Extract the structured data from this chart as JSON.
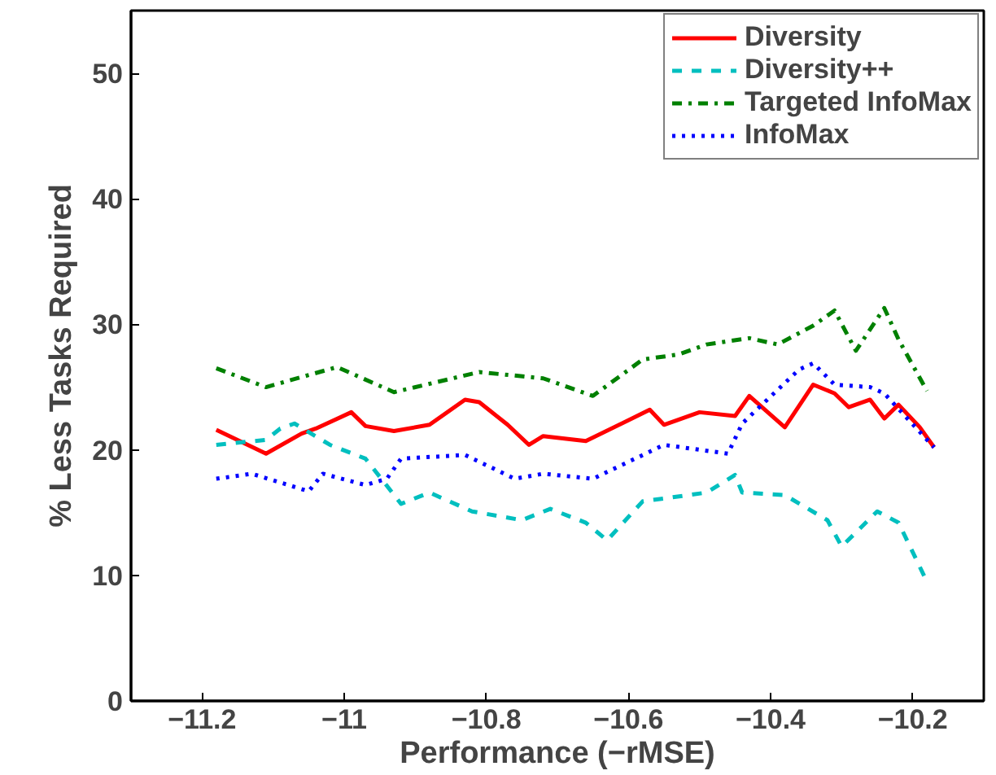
{
  "chart_data": {
    "type": "line",
    "xlabel": "Performance (−rMSE)",
    "ylabel": "% Less Tasks Required",
    "xlim": [
      -11.3,
      -10.1
    ],
    "ylim": [
      0,
      55
    ],
    "xticks": [
      {
        "value": -11.2,
        "label": "−11.2"
      },
      {
        "value": -11,
        "label": "−11"
      },
      {
        "value": -10.8,
        "label": "−10.8"
      },
      {
        "value": -10.6,
        "label": "−10.6"
      },
      {
        "value": -10.4,
        "label": "−10.4"
      },
      {
        "value": -10.2,
        "label": "−10.2"
      }
    ],
    "yticks": [
      0,
      10,
      20,
      30,
      40,
      50
    ],
    "grid": false,
    "legend": "top right",
    "marker": "none",
    "series": [
      {
        "name": "Diversity",
        "color": "#ff0000",
        "line_style": "solid",
        "x": [
          -11.18,
          -11.11,
          -11.06,
          -11.04,
          -10.99,
          -10.97,
          -10.93,
          -10.88,
          -10.83,
          -10.81,
          -10.77,
          -10.74,
          -10.72,
          -10.66,
          -10.57,
          -10.55,
          -10.5,
          -10.45,
          -10.43,
          -10.38,
          -10.34,
          -10.31,
          -10.29,
          -10.26,
          -10.24,
          -10.22,
          -10.19,
          -10.17
        ],
        "values": [
          21.6,
          19.7,
          21.3,
          21.7,
          23.0,
          21.9,
          21.5,
          22.0,
          24.0,
          23.8,
          22.0,
          20.4,
          21.1,
          20.7,
          23.2,
          22.0,
          23.0,
          22.7,
          24.3,
          21.8,
          25.2,
          24.5,
          23.4,
          24.0,
          22.5,
          23.6,
          21.8,
          20.2
        ]
      },
      {
        "name": "Diversity++",
        "color": "#00bfbf",
        "line_style": "dashed",
        "x": [
          -11.18,
          -11.11,
          -11.09,
          -11.07,
          -11.02,
          -10.97,
          -10.92,
          -10.88,
          -10.82,
          -10.75,
          -10.71,
          -10.66,
          -10.63,
          -10.58,
          -10.49,
          -10.45,
          -10.44,
          -10.38,
          -10.32,
          -10.3,
          -10.25,
          -10.22,
          -10.18
        ],
        "values": [
          20.4,
          20.8,
          21.7,
          22.1,
          20.4,
          19.3,
          15.7,
          16.6,
          15.1,
          14.4,
          15.3,
          14.2,
          12.8,
          15.9,
          16.6,
          18.0,
          16.6,
          16.4,
          14.4,
          12.3,
          15.1,
          14.2,
          9.5
        ]
      },
      {
        "name": "Targeted InfoMax",
        "color": "#008000",
        "line_style": "dashdot",
        "x": [
          -11.18,
          -11.11,
          -11.01,
          -10.93,
          -10.81,
          -10.72,
          -10.65,
          -10.58,
          -10.53,
          -10.49,
          -10.43,
          -10.39,
          -10.34,
          -10.31,
          -10.28,
          -10.24,
          -10.22,
          -10.18
        ],
        "values": [
          26.5,
          25.0,
          26.6,
          24.6,
          26.2,
          25.7,
          24.3,
          27.2,
          27.6,
          28.4,
          28.9,
          28.4,
          29.9,
          31.1,
          27.9,
          31.3,
          28.8,
          24.7
        ]
      },
      {
        "name": "InfoMax",
        "color": "#0000ff",
        "line_style": "dotted",
        "x": [
          -11.18,
          -11.13,
          -11.05,
          -11.03,
          -10.97,
          -10.94,
          -10.92,
          -10.83,
          -10.76,
          -10.72,
          -10.65,
          -10.55,
          -10.46,
          -10.44,
          -10.36,
          -10.34,
          -10.31,
          -10.26,
          -10.24,
          -10.17
        ],
        "values": [
          17.7,
          18.1,
          16.7,
          18.1,
          17.2,
          17.7,
          19.3,
          19.6,
          17.7,
          18.1,
          17.7,
          20.4,
          19.7,
          22.1,
          26.4,
          26.9,
          25.2,
          25.0,
          24.5,
          20.2
        ]
      }
    ]
  }
}
